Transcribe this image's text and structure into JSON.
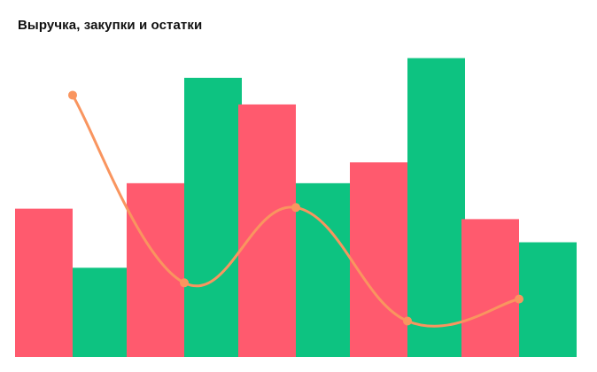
{
  "chart_data": {
    "type": "bar",
    "title": "Выручка, закупки и остатки",
    "categories": [
      "",
      "",
      "",
      "",
      ""
    ],
    "series": [
      {
        "values": [
          128,
          150,
          218,
          168,
          119
        ],
        "color": "#FF5A6E"
      },
      {
        "values": [
          77,
          241,
          150,
          258,
          99
        ],
        "color": "#0DC381"
      }
    ],
    "line_series": [
      {
        "values": [
          226,
          64,
          129,
          31,
          50
        ],
        "color": "#F9955F"
      }
    ],
    "xlabel": "",
    "ylabel": "",
    "ylim": [
      0,
      260
    ],
    "grid": false,
    "legend": "none"
  }
}
